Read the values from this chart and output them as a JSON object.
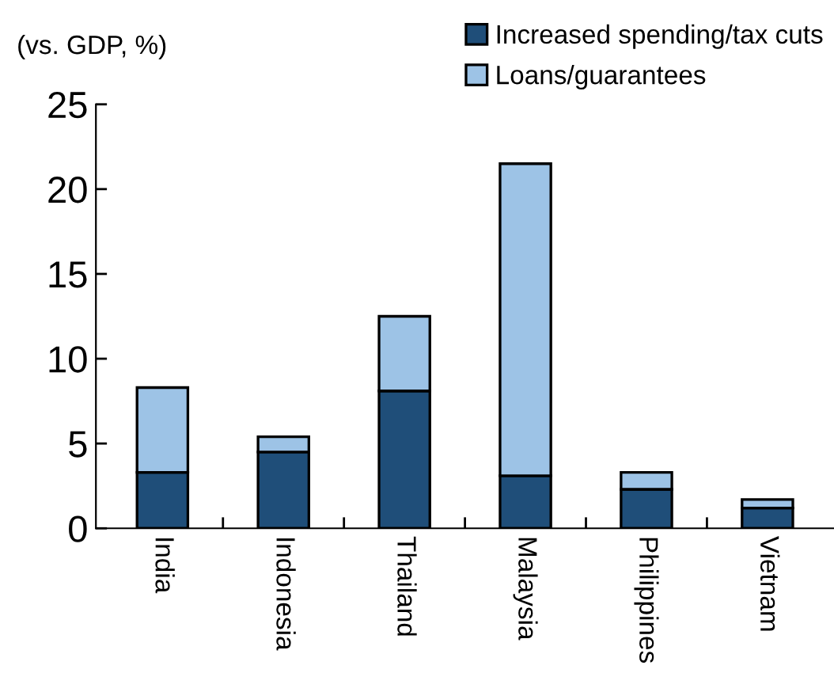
{
  "chart_data": {
    "type": "bar",
    "stacked": true,
    "ylabel": "(vs. GDP, %)",
    "categories": [
      "India",
      "Indonesia",
      "Thailand",
      "Malaysia",
      "Philippines",
      "Vietnam"
    ],
    "series": [
      {
        "name": "Increased spending/tax cuts",
        "color": "#1f4e79",
        "values": [
          3.3,
          4.5,
          8.1,
          3.1,
          2.3,
          1.2
        ]
      },
      {
        "name": "Loans/guarantees",
        "color": "#9dc3e6",
        "values": [
          5.0,
          0.9,
          4.4,
          18.4,
          1.0,
          0.5
        ]
      }
    ],
    "ylim": [
      0,
      25
    ],
    "yticks": [
      0,
      5,
      10,
      15,
      20,
      25
    ],
    "grid": false,
    "legend": "top right"
  }
}
